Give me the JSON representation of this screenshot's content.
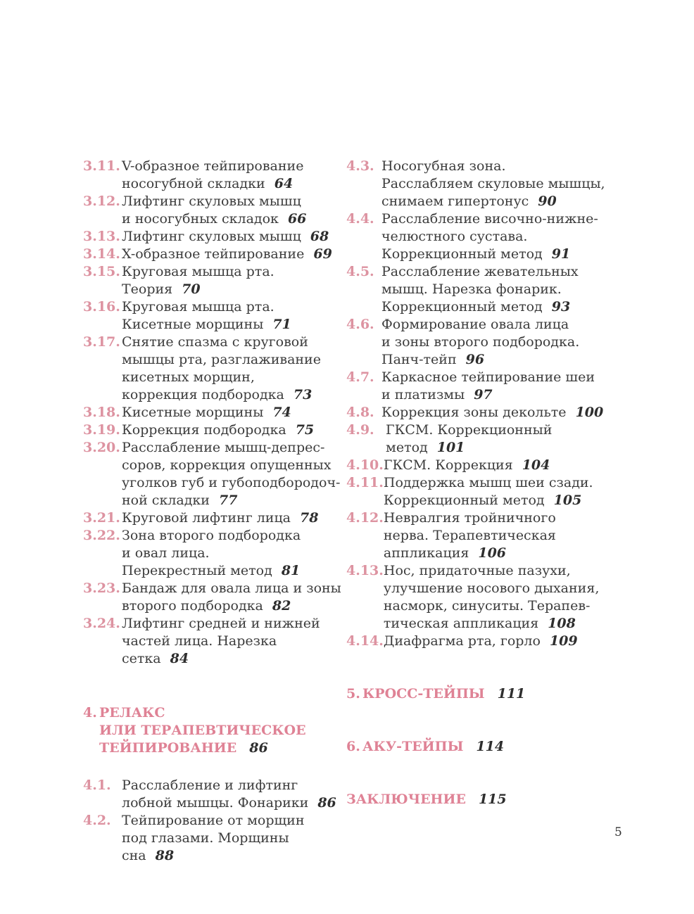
{
  "page": {
    "number": "5",
    "colors": {
      "item_number": "#dd93a1",
      "section_heading": "#df8295",
      "body_text": "#3c3c3c",
      "page_reference": "#2e2e2e",
      "background": "#ffffff"
    }
  },
  "columns": {
    "left": [
      {
        "type": "item",
        "num": "3.11.",
        "lines": [
          "V-образное тейпирование",
          "носогубной складки"
        ],
        "page": "64"
      },
      {
        "type": "item",
        "num": "3.12.",
        "lines": [
          "Лифтинг скуловых мышц",
          "и носогубных складок"
        ],
        "page": "66"
      },
      {
        "type": "item",
        "num": "3.13.",
        "lines": [
          "Лифтинг скуловых мышц"
        ],
        "page": "68"
      },
      {
        "type": "item",
        "num": "3.14.",
        "lines": [
          "X-образное тейпирование"
        ],
        "page": "69"
      },
      {
        "type": "item",
        "num": "3.15.",
        "lines": [
          "Круговая мышца рта. Теория"
        ],
        "page": "70"
      },
      {
        "type": "item",
        "num": "3.16.",
        "lines": [
          "Круговая мышца рта.",
          "Кисетные морщины"
        ],
        "page": "71"
      },
      {
        "type": "item",
        "num": "3.17.",
        "lines": [
          "Снятие спазма с круговой",
          "мышцы рта, разглаживание",
          "кисетных морщин,",
          "коррекция подбородка"
        ],
        "page": "73"
      },
      {
        "type": "item",
        "num": "3.18.",
        "lines": [
          "Кисетные морщины"
        ],
        "page": "74"
      },
      {
        "type": "item",
        "num": "3.19.",
        "lines": [
          "Коррекция подбородка"
        ],
        "page": "75"
      },
      {
        "type": "item",
        "num": "3.20.",
        "lines": [
          "Расслабление мышц-депрес-",
          "соров, коррекция опущенных",
          "уголков губ и губоподбородоч-",
          "ной складки"
        ],
        "page": "77"
      },
      {
        "type": "item",
        "num": "3.21.",
        "lines": [
          "Круговой лифтинг лица"
        ],
        "page": "78"
      },
      {
        "type": "item",
        "num": "3.22.",
        "lines": [
          "Зона второго подбородка",
          "и овал лица.",
          "Перекрестный метод"
        ],
        "page": "81"
      },
      {
        "type": "item",
        "num": "3.23.",
        "lines": [
          "Бандаж для овала лица и зоны",
          "второго подбородка"
        ],
        "page": "82"
      },
      {
        "type": "item",
        "num": "3.24.",
        "lines": [
          "Лифтинг средней и нижней",
          "частей лица. Нарезка сетка"
        ],
        "page": "84"
      },
      {
        "type": "section",
        "num": "4.",
        "lines": [
          "РЕЛАКС",
          "ИЛИ ТЕРАПЕВТИЧЕСКОЕ",
          "ТЕЙПИРОВАНИЕ"
        ],
        "page": "86"
      },
      {
        "type": "item",
        "num": "4.1.",
        "lines": [
          "Расслабление и лифтинг",
          "лобной мышцы. Фонарики"
        ],
        "page": "86"
      },
      {
        "type": "item",
        "num": "4.2.",
        "lines": [
          "Тейпирование от морщин",
          "под глазами. Морщины сна"
        ],
        "page": "88"
      }
    ],
    "right": [
      {
        "type": "item",
        "num": "4.3.",
        "lines": [
          "Носогубная зона.",
          "Расслабляем скуловые мышцы,",
          "снимаем гипертонус"
        ],
        "page": "90"
      },
      {
        "type": "item",
        "num": "4.4.",
        "lines": [
          "Расслабление височно-нижне-",
          "челюстного сустава.",
          "Коррекционный метод"
        ],
        "page": "91"
      },
      {
        "type": "item",
        "num": "4.5.",
        "lines": [
          "Расслабление жевательных",
          "мышц. Нарезка фонарик.",
          "Коррекционный метод"
        ],
        "page": "93"
      },
      {
        "type": "item",
        "num": "4.6.",
        "lines": [
          "Формирование овала лица",
          "и зоны второго подбородка.",
          "Панч-тейп"
        ],
        "page": "96"
      },
      {
        "type": "item",
        "num": "4.7.",
        "lines": [
          "Каркасное тейпирование шеи",
          "и платизмы"
        ],
        "page": "97"
      },
      {
        "type": "item",
        "num": "4.8.",
        "lines": [
          "Коррекция зоны декольте"
        ],
        "page": "100"
      },
      {
        "type": "item",
        "num": "4.9.",
        "lines": [
          " ГКСМ. Коррекционный",
          " метод"
        ],
        "page": "101"
      },
      {
        "type": "item",
        "num": "4.10.",
        "lines": [
          "ГКСМ. Коррекция"
        ],
        "page": "104"
      },
      {
        "type": "item",
        "num": "4.11.",
        "lines": [
          "Поддержка мышц шеи сзади.",
          "Коррекционный метод"
        ],
        "page": "105"
      },
      {
        "type": "item",
        "num": "4.12.",
        "lines": [
          "Невралгия тройничного",
          "нерва. Терапевтическая",
          "аппликация"
        ],
        "page": "106"
      },
      {
        "type": "item",
        "num": "4.13.",
        "lines": [
          "Нос, придаточные пазухи,",
          "улучшение носового дыхания,",
          "насморк, синуситы. Терапев-",
          "тическая аппликация"
        ],
        "page": "108"
      },
      {
        "type": "item",
        "num": "4.14.",
        "lines": [
          "Диафрагма рта, горло"
        ],
        "page": "109"
      },
      {
        "type": "section",
        "num": "5.",
        "lines": [
          "КРОСС-ТЕЙПЫ"
        ],
        "page": "111"
      },
      {
        "type": "section",
        "num": "6.",
        "lines": [
          "АКУ-ТЕЙПЫ"
        ],
        "page": "114"
      },
      {
        "type": "section",
        "num": "",
        "lines": [
          "ЗАКЛЮЧЕНИЕ"
        ],
        "page": "115"
      }
    ]
  }
}
